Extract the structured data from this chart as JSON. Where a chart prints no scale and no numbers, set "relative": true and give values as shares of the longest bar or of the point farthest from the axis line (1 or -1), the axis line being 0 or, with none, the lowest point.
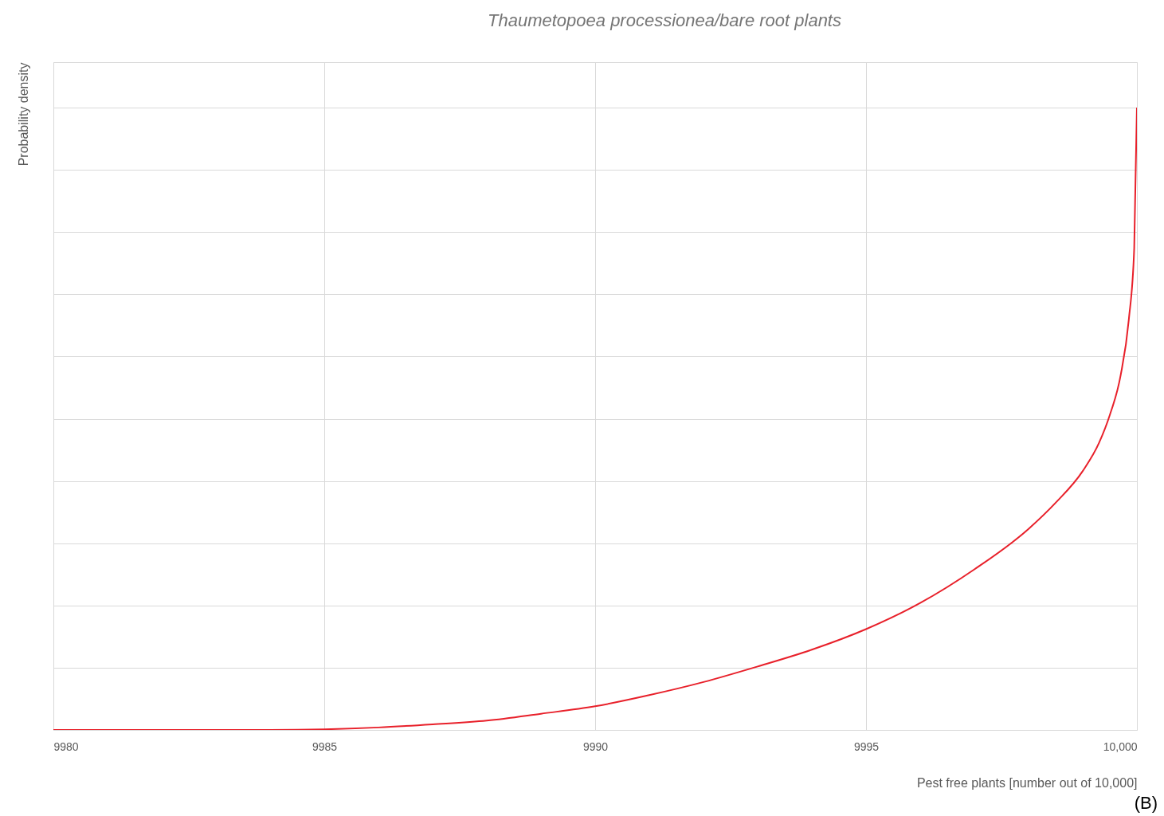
{
  "chart_data": {
    "type": "line",
    "title": "Thaumetopoea processionea/bare root plants",
    "xlabel": "Pest free plants [number out of 10,000]",
    "ylabel": "Probability density",
    "annotations": [
      "(B)"
    ],
    "relative": true,
    "grid": true,
    "marker": "none",
    "line_style": "solid",
    "xlim": [
      9980,
      10000
    ],
    "xticks": [
      9980,
      9985,
      9990,
      9995,
      {
        "value": 10000,
        "label": "10,000"
      }
    ],
    "x": [
      9980,
      9984,
      9985,
      9986,
      9987,
      9988,
      9989,
      9990,
      9991,
      9992,
      9993,
      9994,
      9995,
      9996,
      9997,
      9998,
      9998.5,
      9999,
      9999.3,
      9999.5,
      9999.7,
      9999.85,
      9999.95,
      10000
    ],
    "series": [
      {
        "color": "#e8202a",
        "values": [
          0,
          0,
          0.001,
          0.004,
          0.009,
          0.015,
          0.026,
          0.038,
          0.056,
          0.077,
          0.102,
          0.129,
          0.162,
          0.204,
          0.258,
          0.323,
          0.365,
          0.416,
          0.461,
          0.506,
          0.57,
          0.659,
          0.774,
          1
        ]
      }
    ]
  }
}
